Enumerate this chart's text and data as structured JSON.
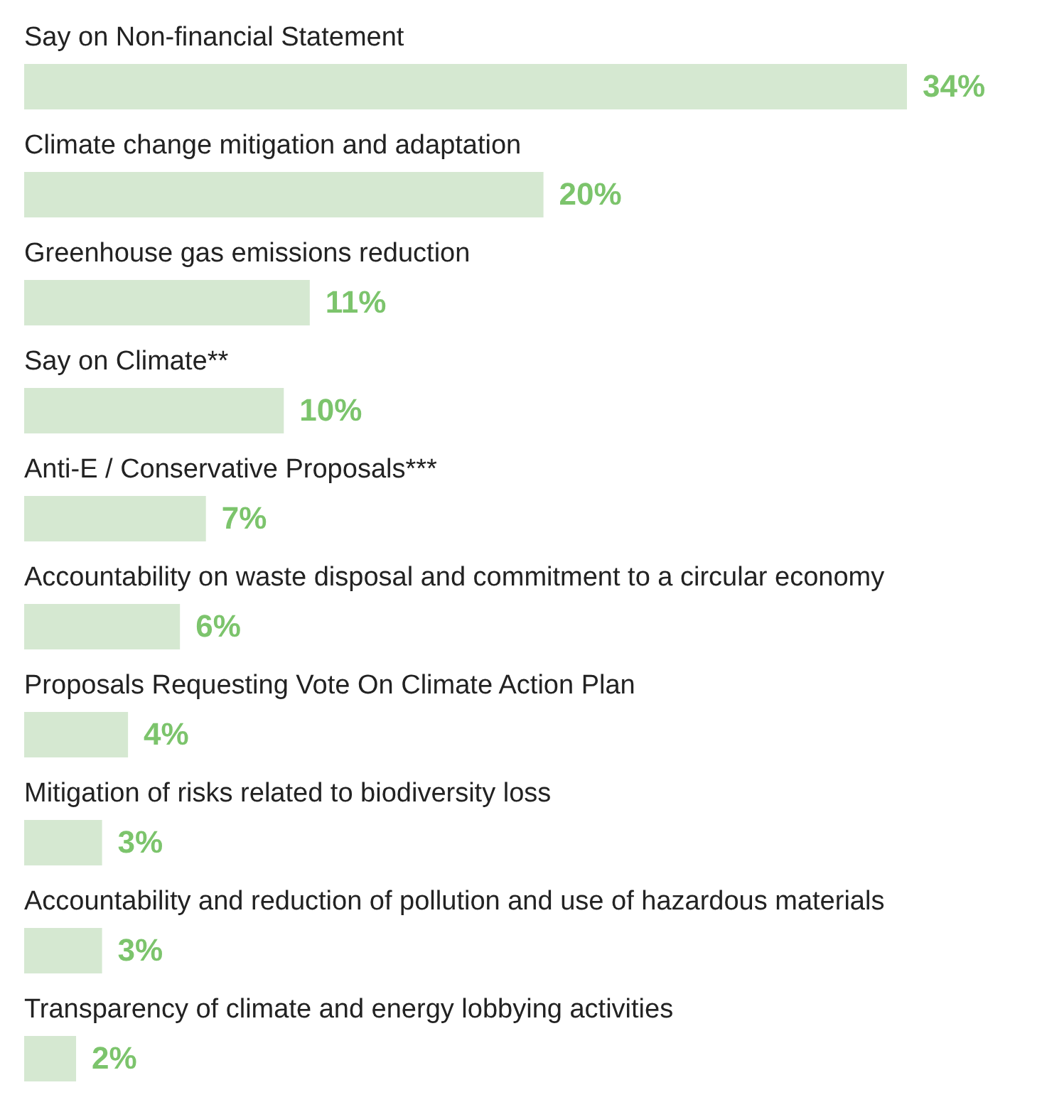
{
  "chart_data": {
    "type": "bar",
    "orientation": "horizontal",
    "categories": [
      "Say on Non-financial Statement",
      "Climate change mitigation and adaptation",
      "Greenhouse gas emissions reduction",
      "Say on Climate**",
      "Anti-E / Conservative Proposals***",
      "Accountability on waste disposal and commitment to a circular economy",
      "Proposals Requesting Vote On Climate Action Plan",
      "Mitigation of risks related to biodiversity loss",
      "Accountability and reduction of pollution and use of hazardous materials",
      "Transparency of climate and energy lobbying activities"
    ],
    "values": [
      34,
      20,
      11,
      10,
      7,
      6,
      4,
      3,
      3,
      2
    ],
    "value_labels": [
      "34%",
      "20%",
      "11%",
      "10%",
      "7%",
      "6%",
      "4%",
      "3%",
      "3%",
      "2%"
    ],
    "color": "#d5e8d1",
    "grid": false
  }
}
